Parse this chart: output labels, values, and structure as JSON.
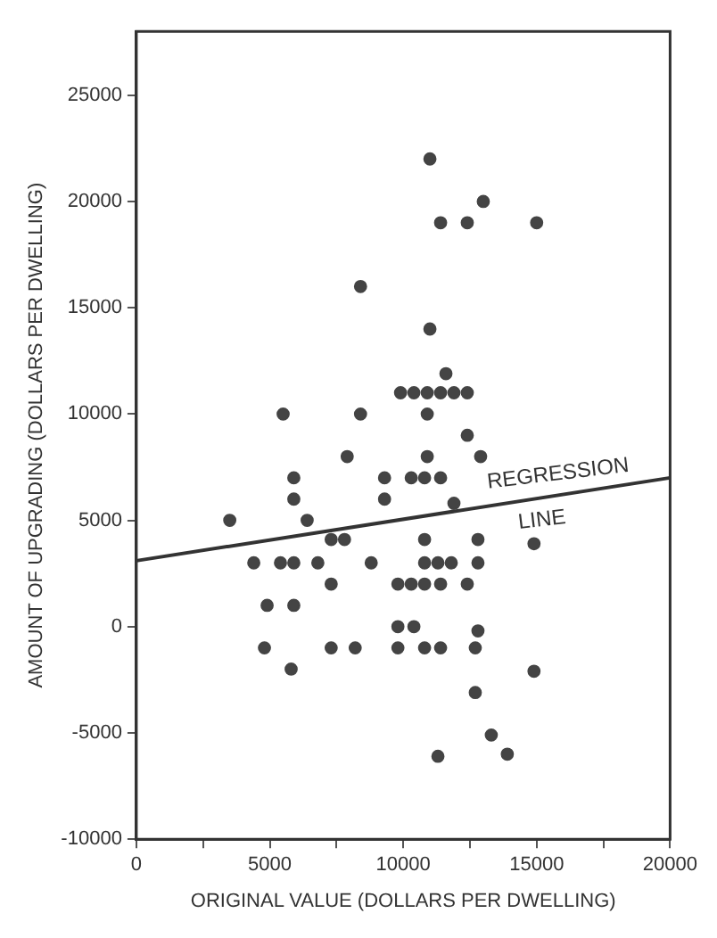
{
  "chart_data": {
    "type": "scatter",
    "xlabel": "ORIGINAL VALUE (DOLLARS PER DWELLING)",
    "ylabel": "AMOUNT OF UPGRADING (DOLLARS PER DWELLING)",
    "xlim": [
      0,
      20000
    ],
    "ylim": [
      -10000,
      28000
    ],
    "xticks": [
      0,
      {
        "value": 2500,
        "label": null
      },
      5000,
      {
        "value": 7500,
        "label": null
      },
      10000,
      {
        "value": 12500,
        "label": null
      },
      15000,
      {
        "value": 17500,
        "label": null
      },
      20000
    ],
    "yticks": [
      -10000,
      -5000,
      0,
      5000,
      10000,
      15000,
      20000,
      25000
    ],
    "grid": false,
    "legend": false,
    "marker": "circle",
    "series": [
      {
        "color": "#444444",
        "x": [
          11000,
          13000,
          11400,
          12400,
          15000,
          8400,
          11000,
          11600,
          9900,
          10400,
          10900,
          11400,
          11900,
          12400,
          5500,
          8400,
          10900,
          12400,
          7900,
          10900,
          12900,
          5900,
          9300,
          10300,
          10800,
          11400,
          5900,
          9300,
          11900,
          3500,
          6400,
          7300,
          7800,
          10800,
          12800,
          14900,
          4400,
          5400,
          5900,
          6800,
          8800,
          10800,
          11300,
          11800,
          12800,
          7300,
          9800,
          10300,
          10800,
          11400,
          12400,
          4900,
          5900,
          9800,
          10400,
          12800,
          4800,
          7300,
          8200,
          9800,
          10800,
          11400,
          12700,
          5800,
          14900,
          12700,
          13300,
          11300,
          13900
        ],
        "values": [
          22000,
          20000,
          19000,
          19000,
          19000,
          16000,
          14000,
          11900,
          11000,
          11000,
          11000,
          11000,
          11000,
          11000,
          10000,
          10000,
          10000,
          9000,
          8000,
          8000,
          8000,
          7000,
          7000,
          7000,
          7000,
          7000,
          6000,
          6000,
          5800,
          5000,
          5000,
          4100,
          4100,
          4100,
          4100,
          3900,
          3000,
          3000,
          3000,
          3000,
          3000,
          3000,
          3000,
          3000,
          3000,
          2000,
          2000,
          2000,
          2000,
          2000,
          2000,
          1000,
          1000,
          0,
          0,
          -200,
          -1000,
          -1000,
          -1000,
          -1000,
          -1000,
          -1000,
          -1000,
          -2000,
          -2100,
          -3100,
          -5100,
          -6100,
          -6000
        ]
      },
      {
        "type": "line",
        "color": "#333333",
        "x": [
          0,
          20000
        ],
        "values": [
          3100,
          7000
        ],
        "marker": "none",
        "line_style": "solid"
      }
    ],
    "annotations": [
      "REGRESSION",
      "LINE"
    ]
  }
}
